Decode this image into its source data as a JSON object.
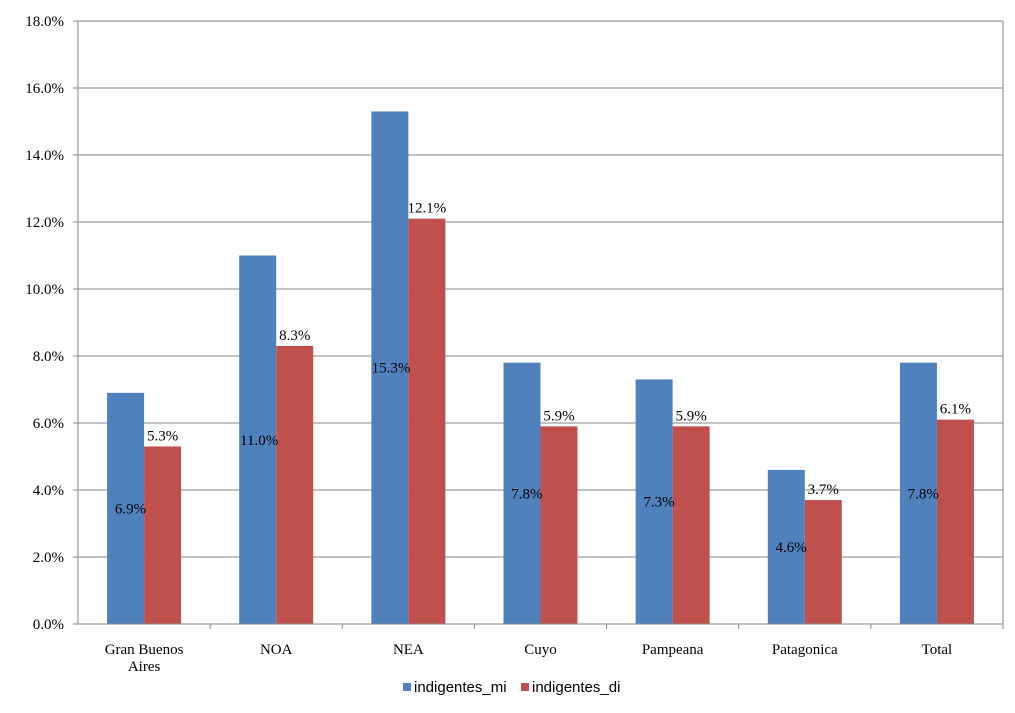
{
  "chart_data": {
    "type": "bar",
    "title": "",
    "xlabel": "",
    "ylabel": "",
    "ylim": [
      0,
      18
    ],
    "y_ticks": [
      "0.0%",
      "2.0%",
      "4.0%",
      "6.0%",
      "8.0%",
      "10.0%",
      "12.0%",
      "14.0%",
      "16.0%",
      "18.0%"
    ],
    "categories": [
      [
        "Gran Buenos",
        "Aires"
      ],
      [
        "NOA"
      ],
      [
        "NEA"
      ],
      [
        "Cuyo"
      ],
      [
        "Pampeana"
      ],
      [
        "Patagonica"
      ],
      [
        "Total"
      ]
    ],
    "series": [
      {
        "name": "indigentes_mi",
        "color": "#4F81BD",
        "values": [
          6.9,
          11.0,
          15.3,
          7.8,
          7.3,
          4.6,
          7.8
        ],
        "labels": [
          "6.9%",
          "11.0%",
          "15.3%",
          "7.8%",
          "7.3%",
          "4.6%",
          "7.8%"
        ]
      },
      {
        "name": "indigentes_di",
        "color": "#C0504D",
        "values": [
          5.3,
          8.3,
          12.1,
          5.9,
          5.9,
          3.7,
          6.1
        ],
        "labels": [
          "5.3%",
          "8.3%",
          "12.1%",
          "5.9%",
          "5.9%",
          "3.7%",
          "6.1%"
        ]
      }
    ],
    "grid": true,
    "legend": "bottom"
  }
}
